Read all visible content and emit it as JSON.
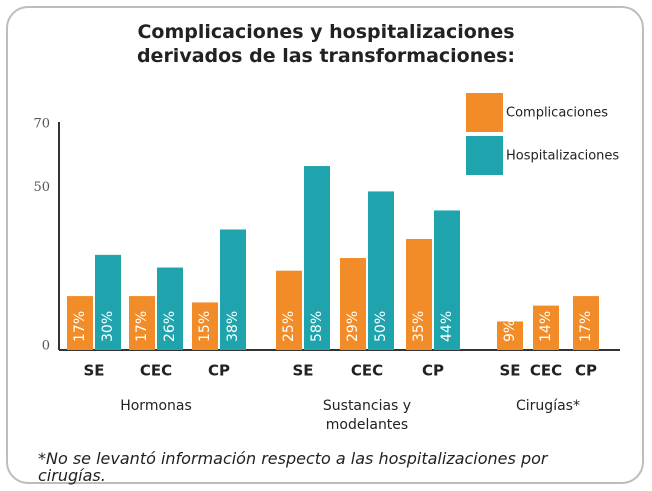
{
  "chart_data": {
    "type": "bar",
    "title": "Complicaciones y hospitalizaciones derivados de las transformaciones:",
    "categories": [
      "SE",
      "CEC",
      "CP",
      "SE",
      "CEC",
      "CP",
      "SE",
      "CEC",
      "CP"
    ],
    "groups": [
      "Hormonas",
      "Sustancias y modelantes",
      "Cirugías*"
    ],
    "series": [
      {
        "name": "Complicaciones",
        "color": "#f28c28",
        "values": [
          17,
          17,
          15,
          25,
          29,
          35,
          9,
          14,
          17
        ],
        "value_labels": [
          "17%",
          "17%",
          "15%",
          "25%",
          "29%",
          "35%",
          "9%",
          "14%",
          "17%"
        ]
      },
      {
        "name": "Hospitalizaciones",
        "color": "#1fa3ad",
        "values": [
          30,
          26,
          38,
          58,
          50,
          44,
          null,
          null,
          null
        ],
        "value_labels": [
          "30%",
          "26%",
          "38%",
          "58%",
          "50%",
          "44%",
          null,
          null,
          null
        ]
      }
    ],
    "ylim": [
      0,
      70
    ],
    "yticks": [
      0,
      50,
      70
    ],
    "grid": false,
    "legend": "top-right",
    "footnote": "*No se levantó información respecto a las hospitalizaciones por cirugías."
  }
}
